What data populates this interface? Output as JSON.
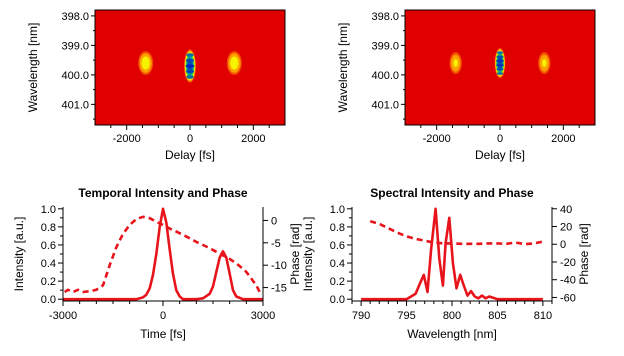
{
  "chart_data": [
    {
      "type": "heatmap",
      "panel": "top-left",
      "title": "",
      "xlabel": "Delay [fs]",
      "ylabel": "Wavelength [nm]",
      "xlim": [
        -3000,
        3000
      ],
      "ylim": [
        401.7,
        397.8
      ],
      "xticks": [
        -2000,
        0,
        2000
      ],
      "xtick_labels": [
        "-2000",
        "0",
        "2000"
      ],
      "yticks": [
        398,
        399,
        400,
        401
      ],
      "ytick_labels": [
        "398.0",
        "399.0",
        "400.0",
        "401.0"
      ],
      "colormap": [
        "#e00000",
        "#ff8a00",
        "#f5f500",
        "#30d040",
        "#00a0a0",
        "#0020c0"
      ],
      "lobes": [
        {
          "delay": -1400,
          "wavelength": 399.6,
          "width_fs": 260,
          "height_nm": 0.85,
          "peak": 0.45
        },
        {
          "delay": 0,
          "wavelength": 399.7,
          "width_fs": 190,
          "height_nm": 1.1,
          "peak": 1.0,
          "fringes": 5
        },
        {
          "delay": 1400,
          "wavelength": 399.6,
          "width_fs": 260,
          "height_nm": 0.85,
          "peak": 0.45
        }
      ]
    },
    {
      "type": "heatmap",
      "panel": "top-right",
      "title": "",
      "xlabel": "Delay [fs]",
      "ylabel": "Wavelength [nm]",
      "xlim": [
        -3000,
        3000
      ],
      "ylim": [
        401.7,
        397.8
      ],
      "xticks": [
        -2000,
        0,
        2000
      ],
      "xtick_labels": [
        "-2000",
        "0",
        "2000"
      ],
      "yticks": [
        398,
        399,
        400,
        401
      ],
      "ytick_labels": [
        "398.0",
        "399.0",
        "400.0",
        "401.0"
      ],
      "colormap": [
        "#e00000",
        "#ff8a00",
        "#f5f500",
        "#30d040",
        "#00a0a0",
        "#0020c0"
      ],
      "lobes": [
        {
          "delay": -1400,
          "wavelength": 399.6,
          "width_fs": 220,
          "height_nm": 0.8,
          "peak": 0.38
        },
        {
          "delay": 0,
          "wavelength": 399.6,
          "width_fs": 170,
          "height_nm": 1.0,
          "peak": 1.0,
          "fringes": 6
        },
        {
          "delay": 1400,
          "wavelength": 399.6,
          "width_fs": 220,
          "height_nm": 0.8,
          "peak": 0.38
        }
      ]
    },
    {
      "type": "line",
      "panel": "bottom-left",
      "title": "Temporal Intensity and Phase",
      "xlabel": "Time [fs]",
      "ylabel": "Intensity [a.u.]",
      "ylabel_right": "Phase [rad]",
      "xlim": [
        -3000,
        3000
      ],
      "ylim": [
        -0.02,
        1.02
      ],
      "ylim_right": [
        -18,
        3
      ],
      "xticks": [
        -3000,
        0,
        3000
      ],
      "xtick_labels": [
        "-3000",
        "0",
        "3000"
      ],
      "yticks": [
        0,
        0.2,
        0.4,
        0.6,
        0.8,
        1.0
      ],
      "ytick_labels": [
        "0.0",
        "0.2",
        "0.4",
        "0.6",
        "0.8",
        "1.0"
      ],
      "yticks_right": [
        0,
        -5,
        -10,
        -15
      ],
      "ytick_labels_right": [
        "0",
        "-5",
        "-10",
        "-15"
      ],
      "series": [
        {
          "axis": "left",
          "style": "solid",
          "color": "#e8141b",
          "x": [
            -3000,
            -800,
            -600,
            -500,
            -400,
            -300,
            -200,
            -100,
            0,
            100,
            200,
            300,
            400,
            500,
            600,
            800,
            1000,
            1200,
            1400,
            1500,
            1600,
            1700,
            1800,
            1900,
            2000,
            2100,
            2200,
            2400,
            3000
          ],
          "y": [
            0.0,
            0.0,
            0.02,
            0.05,
            0.12,
            0.27,
            0.5,
            0.8,
            1.0,
            0.85,
            0.55,
            0.28,
            0.1,
            0.03,
            0.0,
            0.0,
            0.0,
            0.01,
            0.06,
            0.14,
            0.3,
            0.46,
            0.53,
            0.46,
            0.28,
            0.1,
            0.03,
            0.0,
            0.0
          ]
        },
        {
          "axis": "right",
          "style": "dashed",
          "color": "#e8141b",
          "x": [
            -2950,
            -2850,
            -2700,
            -2550,
            -2400,
            -2200,
            -2000,
            -1800,
            -1600,
            -1400,
            -1200,
            -1000,
            -800,
            -600,
            -400,
            -200,
            0,
            200,
            400,
            600,
            800,
            1000,
            1200,
            1400,
            1600,
            1800,
            2000,
            2200,
            2400,
            2500,
            2600,
            2700,
            2800,
            2900,
            2950
          ],
          "y": [
            -16,
            -15.5,
            -16,
            -15.5,
            -16,
            -15.8,
            -15.5,
            -14.5,
            -10,
            -6,
            -3,
            -1,
            0.3,
            0.8,
            0.5,
            -0.3,
            -1,
            -1.8,
            -2.5,
            -3.2,
            -4,
            -4.8,
            -5.5,
            -6.2,
            -7,
            -7.8,
            -8.6,
            -9.6,
            -10.8,
            -11.5,
            -12.5,
            -13.5,
            -14.5,
            -16,
            -16.5
          ]
        }
      ]
    },
    {
      "type": "line",
      "panel": "bottom-right",
      "title": "Spectral Intensity and Phase",
      "xlabel": "Wavelength [nm]",
      "ylabel": "Intensity [a.u.]",
      "ylabel_right": "Phase [rad]",
      "xlim": [
        789,
        811
      ],
      "ylim": [
        -0.02,
        1.02
      ],
      "ylim_right": [
        -64,
        42
      ],
      "xticks": [
        790,
        795,
        800,
        805,
        810
      ],
      "xtick_labels": [
        "790",
        "795",
        "800",
        "805",
        "810"
      ],
      "yticks": [
        0,
        0.2,
        0.4,
        0.6,
        0.8,
        1.0
      ],
      "ytick_labels": [
        "0.0",
        "0.2",
        "0.4",
        "0.6",
        "0.8",
        "1.0"
      ],
      "yticks_right": [
        40,
        20,
        0,
        -20,
        -40,
        -60
      ],
      "ytick_labels_right": [
        "40",
        "20",
        "0",
        "-20",
        "-40",
        "-60"
      ],
      "series": [
        {
          "axis": "left",
          "style": "solid",
          "color": "#e8141b",
          "x": [
            790,
            795,
            796,
            796.5,
            796.9,
            797.3,
            797.7,
            798.2,
            798.6,
            799,
            799.3,
            799.7,
            800.1,
            800.5,
            800.9,
            801.3,
            801.7,
            802.1,
            802.5,
            802.9,
            803.3,
            803.7,
            804.1,
            805,
            810
          ],
          "y": [
            0.0,
            0.0,
            0.06,
            0.18,
            0.27,
            0.08,
            0.55,
            1.0,
            0.45,
            0.15,
            0.62,
            0.9,
            0.4,
            0.12,
            0.27,
            0.15,
            0.04,
            0.09,
            0.03,
            0.01,
            0.04,
            0.01,
            0.03,
            0.0,
            0.0
          ]
        },
        {
          "axis": "right",
          "style": "dashed",
          "color": "#e8141b",
          "x": [
            791,
            792,
            793,
            794,
            795,
            796,
            797,
            798,
            799,
            800,
            801,
            802,
            803,
            804,
            805,
            806,
            807,
            808,
            809,
            810
          ],
          "y": [
            26,
            23,
            18,
            13,
            9,
            6,
            4,
            2,
            1,
            1,
            0.5,
            0.5,
            0.5,
            1,
            1,
            0.5,
            2,
            0,
            1,
            3
          ]
        }
      ]
    }
  ]
}
